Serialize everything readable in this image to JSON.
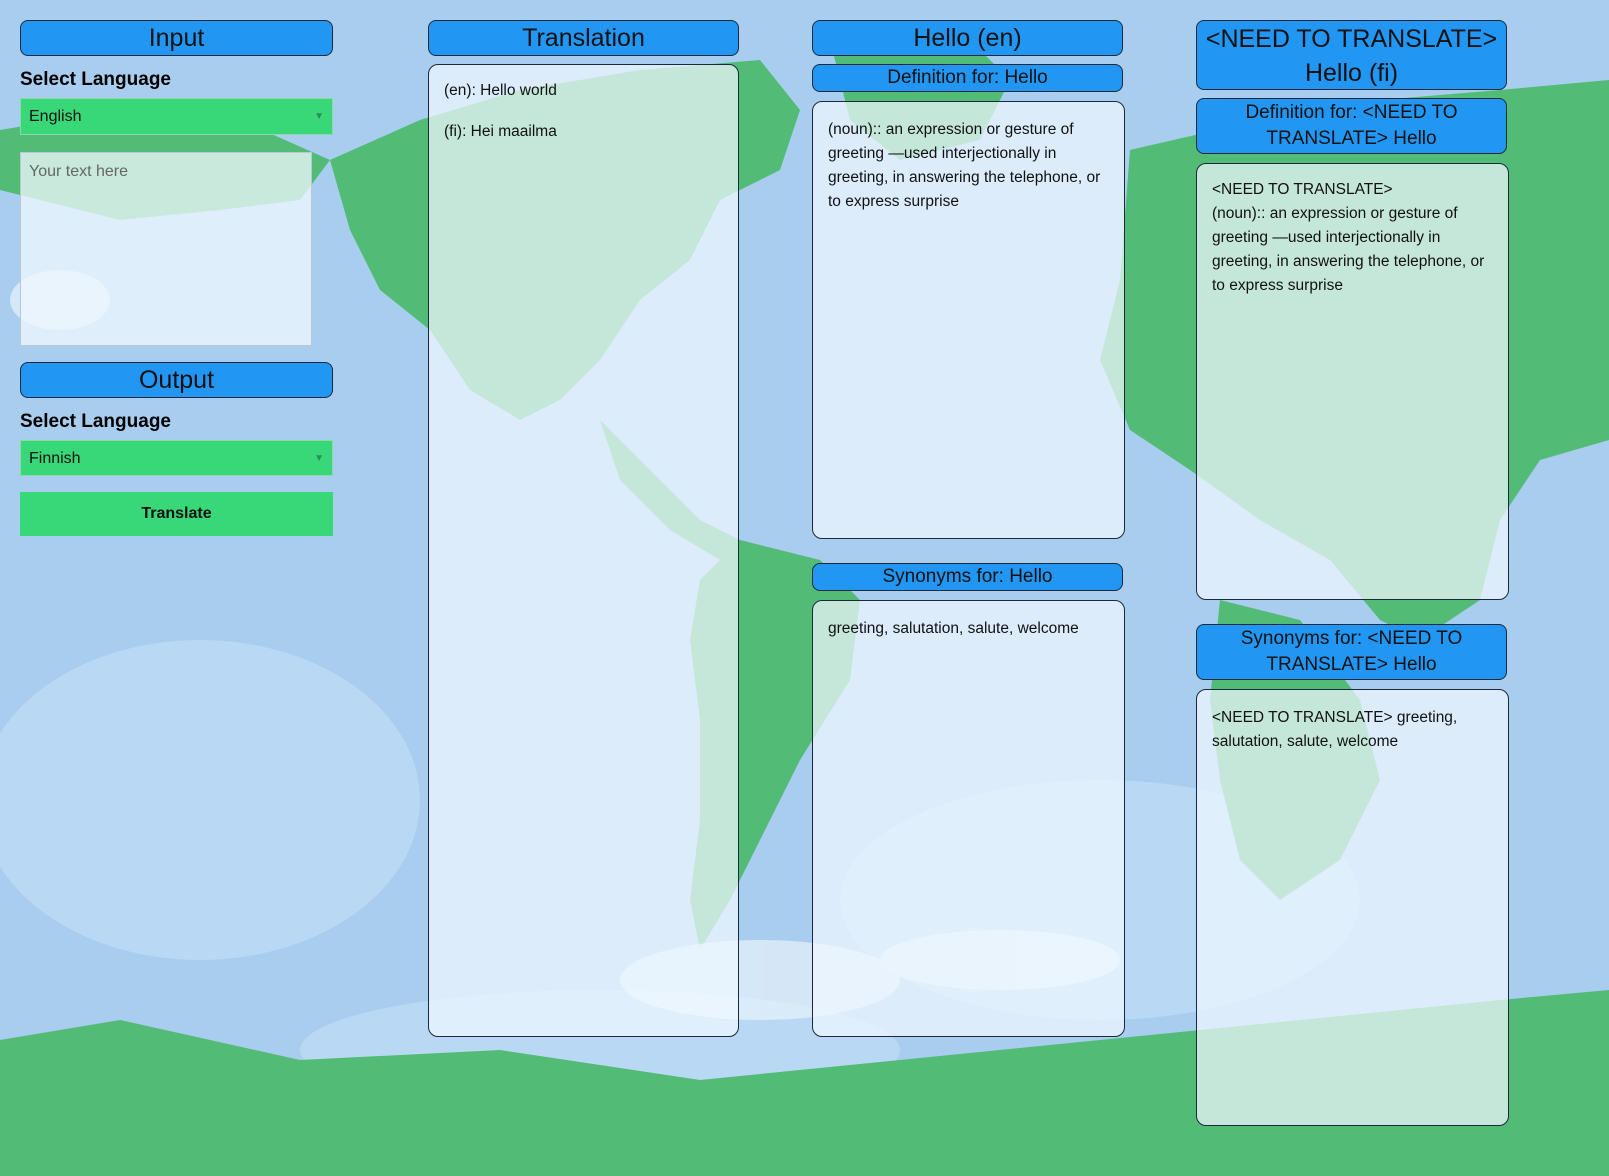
{
  "input": {
    "header": "Input",
    "language_label": "Select Language",
    "language_value": "English",
    "text_placeholder": "Your text here"
  },
  "output": {
    "header": "Output",
    "language_label": "Select Language",
    "language_value": "Finnish",
    "translate_button": "Translate"
  },
  "translation": {
    "header": "Translation",
    "lines": [
      "(en): Hello world",
      "(fi): Hei maailma"
    ]
  },
  "source_word": {
    "header": "Hello (en)",
    "definition_header": "Definition for: Hello",
    "definition_text": "(noun):: an expression or gesture of greeting —used interjectionally in greeting, in answering the telephone, or to express surprise",
    "synonyms_header": "Synonyms for: Hello",
    "synonyms_text": "greeting, salutation, salute, welcome"
  },
  "target_word": {
    "header_line1": "<NEED TO TRANSLATE>",
    "header_line2": "Hello (fi)",
    "definition_header": "Definition for: <NEED TO TRANSLATE> Hello",
    "definition_line1": "<NEED TO TRANSLATE>",
    "definition_text": "(noun):: an expression or gesture of greeting —used interjectionally in greeting, in answering the telephone, or to express surprise",
    "synonyms_header": "Synonyms for: <NEED TO TRANSLATE> Hello",
    "synonyms_text": "<NEED TO TRANSLATE> greeting, salutation, salute, welcome"
  },
  "colors": {
    "header_blue": "#2196f3",
    "accent_green": "#38d879",
    "land_green": "#52bb76",
    "ocean_blue": "#a9cdef"
  }
}
